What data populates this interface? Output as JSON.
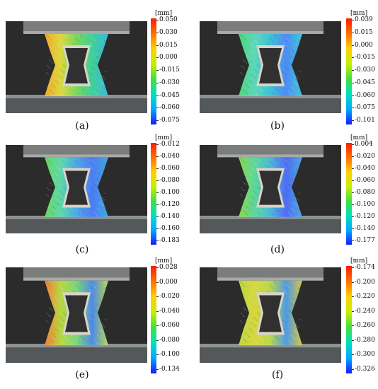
{
  "colors": {
    "scale": [
      "#1a1aff",
      "#00a8ff",
      "#00e0c0",
      "#40e040",
      "#c8f000",
      "#ffd000",
      "#ff7000",
      "#ff1a00"
    ],
    "background": "#ffffff"
  },
  "panels": [
    {
      "caption": "(a)",
      "unit": "[mm]",
      "ticks": [
        "0.050",
        "0.030",
        "0.015",
        "0.000",
        "-0.015",
        "-0.030",
        "-0.045",
        "-0.060",
        "-0.075"
      ]
    },
    {
      "caption": "(b)",
      "unit": "[mm]",
      "ticks": [
        "0.039",
        "0.015",
        "0.000",
        "-0.015",
        "-0.030",
        "-0.045",
        "-0.060",
        "-0.075",
        "-0.101"
      ]
    },
    {
      "caption": "(c)",
      "unit": "[mm]",
      "ticks": [
        "-0.012",
        "-0.040",
        "-0.060",
        "-0.080",
        "-0.100",
        "-0.120",
        "-0.140",
        "-0.160",
        "-0.183"
      ]
    },
    {
      "caption": "(d)",
      "unit": "[mm]",
      "ticks": [
        "0.004",
        "-0.020",
        "-0.040",
        "-0.060",
        "-0.080",
        "-0.100",
        "-0.120",
        "-0.140",
        "-0.177"
      ]
    },
    {
      "caption": "(e)",
      "unit": "[mm]",
      "ticks": [
        "0.028",
        "0.000",
        "-0.020",
        "-0.040",
        "-0.060",
        "-0.080",
        "-0.100",
        "-0.134"
      ]
    },
    {
      "caption": "(f)",
      "unit": "[mm]",
      "ticks": [
        "-0.174",
        "-0.200",
        "-0.220",
        "-0.240",
        "-0.260",
        "-0.280",
        "-0.300",
        "-0.326"
      ]
    }
  ]
}
